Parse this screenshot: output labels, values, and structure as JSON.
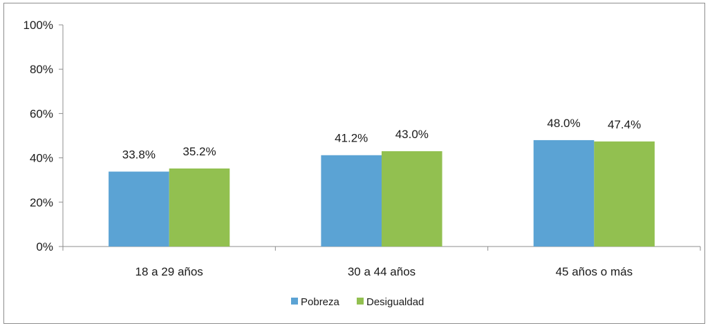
{
  "chart_data": {
    "type": "bar",
    "title": "",
    "xlabel": "",
    "ylabel": "",
    "categories": [
      "18 a 29 años",
      "30 a 44 años",
      "45 años o más"
    ],
    "series": [
      {
        "name": "Pobreza",
        "values": [
          33.8,
          41.2,
          48.0
        ],
        "labels": [
          "33.8%",
          "41.2%",
          "48.0%"
        ],
        "color": "#5ba3d4"
      },
      {
        "name": "Desigualdad",
        "values": [
          35.2,
          43.0,
          47.4
        ],
        "labels": [
          "35.2%",
          "43.0%",
          "47.4%"
        ],
        "color": "#92c050"
      }
    ],
    "ylim": [
      0,
      100
    ],
    "yticks": [
      0,
      20,
      40,
      60,
      80,
      100
    ],
    "ytick_labels": [
      "0%",
      "20%",
      "40%",
      "60%",
      "80%",
      "100%"
    ],
    "grid": false,
    "legend_position": "bottom-center"
  }
}
